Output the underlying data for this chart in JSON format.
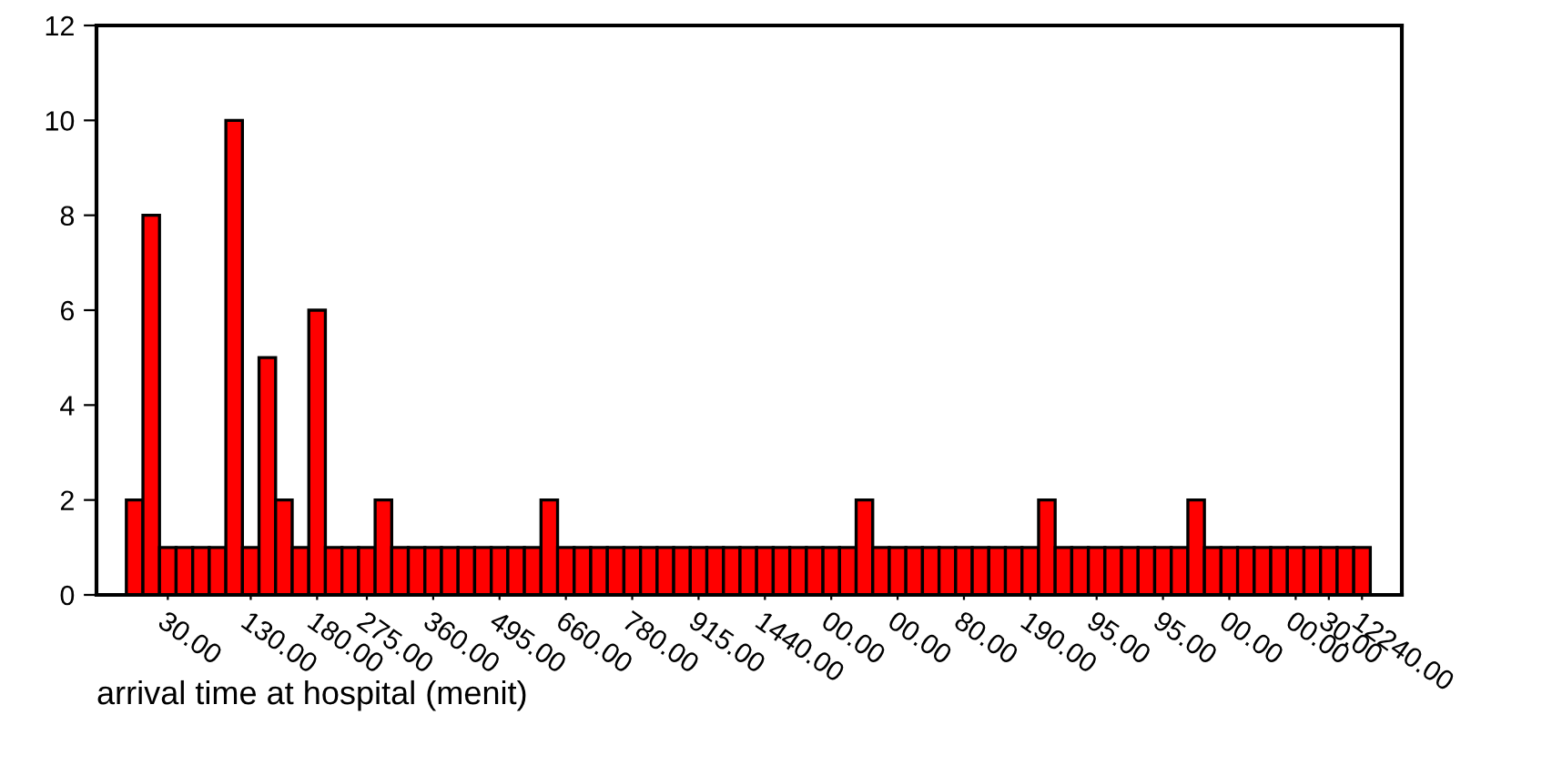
{
  "chart_data": {
    "type": "bar",
    "xlabel": "arrival time at hospital (menit)",
    "categories": [
      null,
      null,
      "30.00",
      null,
      null,
      null,
      null,
      "130.00",
      null,
      null,
      null,
      "180.00",
      null,
      null,
      "275.00",
      null,
      null,
      null,
      "360.00",
      null,
      null,
      null,
      "495.00",
      null,
      null,
      null,
      "660.00",
      null,
      null,
      null,
      "780.00",
      null,
      null,
      null,
      "915.00",
      null,
      null,
      null,
      "1440.00",
      null,
      null,
      null,
      "00.00",
      null,
      null,
      null,
      "00.00",
      null,
      null,
      null,
      "80.00",
      null,
      null,
      null,
      "190.00",
      null,
      null,
      null,
      "95.00",
      null,
      null,
      null,
      "95.00",
      null,
      null,
      null,
      "00.00",
      null,
      null,
      null,
      "00.00",
      null,
      "30.00",
      null,
      "12240.00"
    ],
    "values": [
      2,
      8,
      1,
      1,
      1,
      1,
      10,
      1,
      5,
      2,
      1,
      6,
      1,
      1,
      1,
      2,
      1,
      1,
      1,
      1,
      1,
      1,
      1,
      1,
      1,
      2,
      1,
      1,
      1,
      1,
      1,
      1,
      1,
      1,
      1,
      1,
      1,
      1,
      1,
      1,
      1,
      1,
      1,
      1,
      2,
      1,
      1,
      1,
      1,
      1,
      1,
      1,
      1,
      1,
      1,
      2,
      1,
      1,
      1,
      1,
      1,
      1,
      1,
      1,
      2,
      1,
      1,
      1,
      1,
      1,
      1,
      1,
      1,
      1,
      1
    ],
    "color": "#ff0000",
    "ylim": [
      0,
      12
    ],
    "yticks": [
      0,
      2,
      4,
      6,
      8,
      10,
      12
    ],
    "grid": false,
    "legend": false
  }
}
